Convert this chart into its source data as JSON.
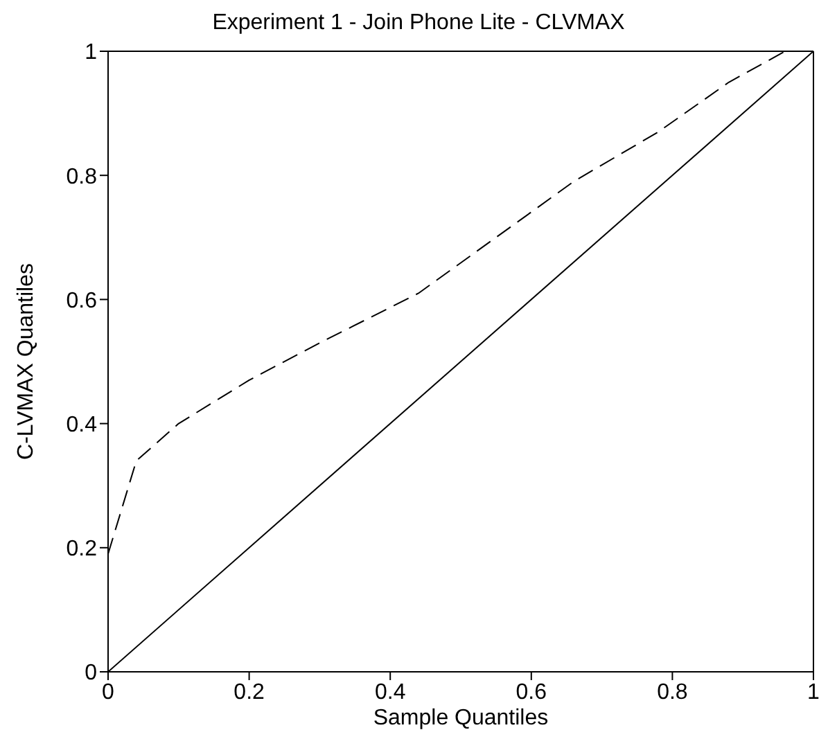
{
  "chart_data": {
    "type": "line",
    "title": "Experiment 1 - Join Phone Lite - CLVMAX",
    "xlabel": "Sample Quantiles",
    "ylabel": "C-LVMAX Quantiles",
    "series": [
      {
        "color": "#000000",
        "line_style": "dashed",
        "x": [
          0,
          0.04,
          0.1,
          0.2,
          0.3,
          0.44,
          0.55,
          0.66,
          0.78,
          0.88,
          0.96,
          1
        ],
        "values": [
          0.19,
          0.34,
          0.4,
          0.47,
          0.53,
          0.61,
          0.7,
          0.79,
          0.87,
          0.95,
          1,
          1
        ]
      },
      {
        "color": "#000000",
        "line_style": "solid",
        "x": [
          0,
          1
        ],
        "values": [
          0,
          1
        ]
      }
    ],
    "xlim": [
      0,
      1
    ],
    "ylim": [
      0,
      1
    ],
    "xticks": [
      0,
      0.2,
      0.4,
      0.6,
      0.8,
      1
    ],
    "yticks": [
      0,
      0.2,
      0.4,
      0.6,
      0.8,
      1
    ],
    "marker": "none"
  }
}
